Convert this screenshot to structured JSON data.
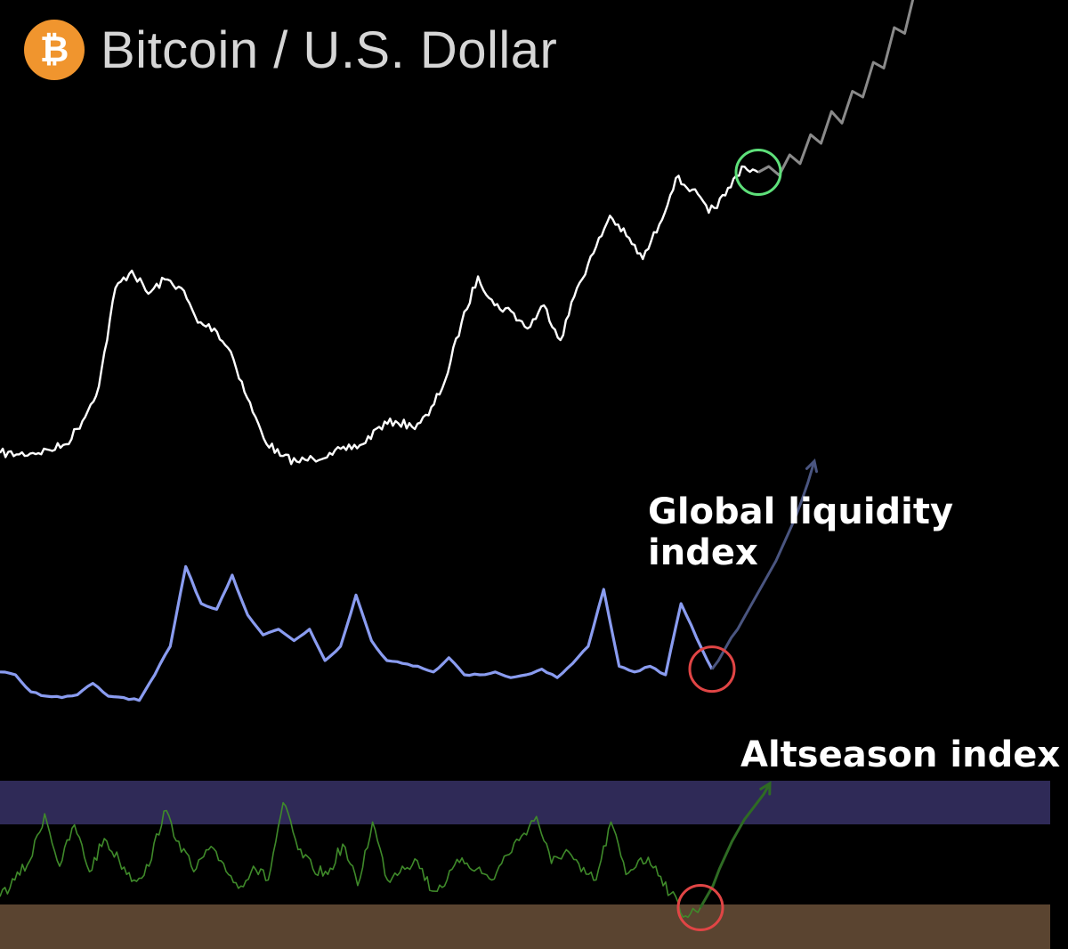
{
  "header": {
    "title": "Bitcoin / U.S. Dollar",
    "logo_glyph": "₿",
    "logo_color": "#f0952e"
  },
  "chart_data": [
    {
      "type": "line",
      "title": "Bitcoin / U.S. Dollar",
      "series": [
        {
          "color": "#ffffff",
          "values": [
            5,
            4.5,
            5,
            6,
            8,
            16,
            28,
            62,
            68,
            60,
            65,
            62,
            50,
            48,
            40,
            24,
            10,
            4,
            2,
            3,
            5,
            6,
            8,
            14,
            16,
            14,
            18,
            30,
            50,
            66,
            56,
            54,
            48,
            56,
            44,
            62,
            74,
            87,
            80,
            72,
            84,
            100,
            96,
            88,
            94,
            104,
            102
          ]
        },
        {
          "name": "projection",
          "color": "#8a8a8a",
          "values": [
            102,
            104,
            101,
            108,
            105,
            115,
            112,
            123,
            119,
            130,
            128,
            140,
            138,
            152,
            150,
            165,
            178
          ]
        }
      ],
      "markers": [
        {
          "type": "circle",
          "color": "#5ee07a",
          "at_index": 46
        }
      ]
    },
    {
      "type": "line",
      "title": "Global liquidity index",
      "series": [
        {
          "color": "#8a9cf0",
          "values": [
            22,
            20,
            8,
            5,
            4,
            6,
            14,
            5,
            4,
            2,
            20,
            40,
            96,
            70,
            66,
            90,
            62,
            48,
            52,
            44,
            52,
            30,
            40,
            76,
            44,
            30,
            28,
            26,
            22,
            32,
            20,
            20,
            22,
            18,
            20,
            24,
            18,
            28,
            40,
            80,
            26,
            22,
            26,
            20,
            70,
            46,
            24
          ]
        },
        {
          "name": "projection",
          "color": "#4a5580",
          "values": [
            24,
            30,
            38,
            46,
            52,
            60,
            68,
            76,
            84,
            92,
            100,
            110,
            120,
            130,
            142,
            155,
            170
          ]
        }
      ],
      "markers": [
        {
          "type": "circle",
          "color": "#e04545",
          "at_index": 46
        }
      ]
    },
    {
      "type": "line",
      "title": "Altseason index",
      "bands": [
        {
          "name": "upper",
          "color": "#2f2a57"
        },
        {
          "name": "lower",
          "color": "#5a4430"
        }
      ],
      "series": [
        {
          "color": "#3f8a2a",
          "values": [
            18,
            30,
            44,
            78,
            40,
            70,
            36,
            60,
            44,
            30,
            40,
            80,
            58,
            36,
            52,
            42,
            24,
            40,
            30,
            86,
            52,
            38,
            34,
            56,
            26,
            72,
            30,
            40,
            44,
            22,
            30,
            46,
            38,
            30,
            48,
            62,
            76,
            42,
            52,
            36,
            30,
            72,
            34,
            46,
            40,
            20,
            4,
            10
          ]
        },
        {
          "name": "projection",
          "color": "#2e6b23",
          "values": [
            10,
            18,
            26,
            38,
            48,
            58,
            66,
            74,
            80,
            86,
            92,
            100
          ]
        }
      ],
      "markers": [
        {
          "type": "circle",
          "color": "#e04545",
          "at_index": 47
        }
      ]
    }
  ],
  "labels": {
    "liquidity": "Global liquidity index",
    "altseason": "Altseason index"
  }
}
